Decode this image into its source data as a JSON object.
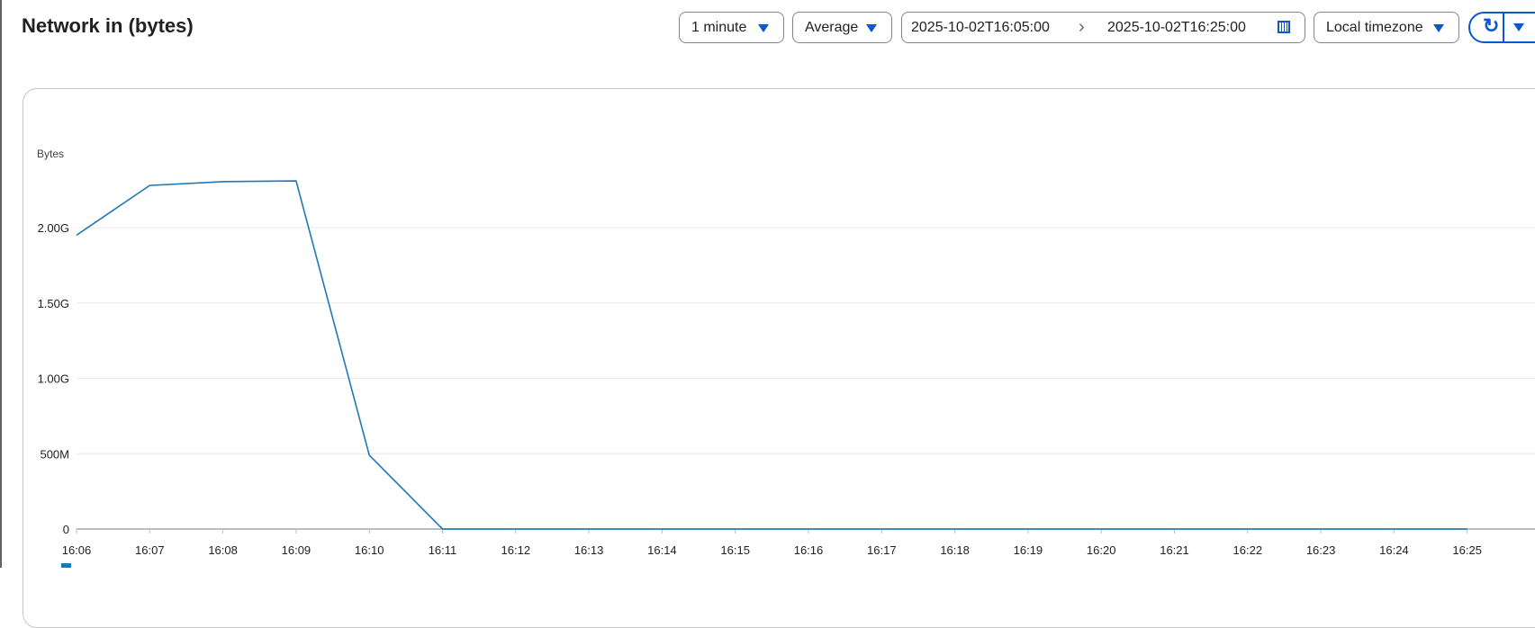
{
  "header": {
    "title": "Network in (bytes)"
  },
  "controls": {
    "interval": "1 minute",
    "aggregation": "Average",
    "start_time": "2025-10-02T16:05:00",
    "end_time": "2025-10-02T16:25:00",
    "timezone": "Local timezone",
    "refresh_icon": "refresh-icon",
    "calendar_icon": "calendar-icon"
  },
  "colors": {
    "accent": "#0b57d0",
    "series": "#1f77b4"
  },
  "chart_data": {
    "type": "line",
    "ylabel": "Bytes",
    "y_ticks": [
      "0",
      "500M",
      "1.00G",
      "1.50G",
      "2.00G"
    ],
    "y_tick_values": [
      0,
      0.5,
      1.0,
      1.5,
      2.0
    ],
    "y_unit": "G bytes",
    "ylim": [
      0,
      2.5
    ],
    "grid": true,
    "x_ticks": [
      "16:06",
      "16:07",
      "16:08",
      "16:09",
      "16:10",
      "16:11",
      "16:12",
      "16:13",
      "16:14",
      "16:15",
      "16:16",
      "16:17",
      "16:18",
      "16:19",
      "16:20",
      "16:21",
      "16:22",
      "16:23",
      "16:24",
      "16:25"
    ],
    "series": [
      {
        "x": [
          "16:06",
          "16:07",
          "16:08",
          "16:09",
          "16:10",
          "16:11",
          "16:12",
          "16:13",
          "16:14",
          "16:15",
          "16:16",
          "16:17",
          "16:18",
          "16:19",
          "16:20",
          "16:21",
          "16:22",
          "16:23",
          "16:24",
          "16:25"
        ],
        "values": [
          1.95,
          2.28,
          2.305,
          2.31,
          0.49,
          0,
          0,
          0,
          0,
          0,
          0,
          0,
          0,
          0,
          0,
          0,
          0,
          0,
          0,
          0
        ]
      }
    ],
    "legend": "bottom-left"
  }
}
